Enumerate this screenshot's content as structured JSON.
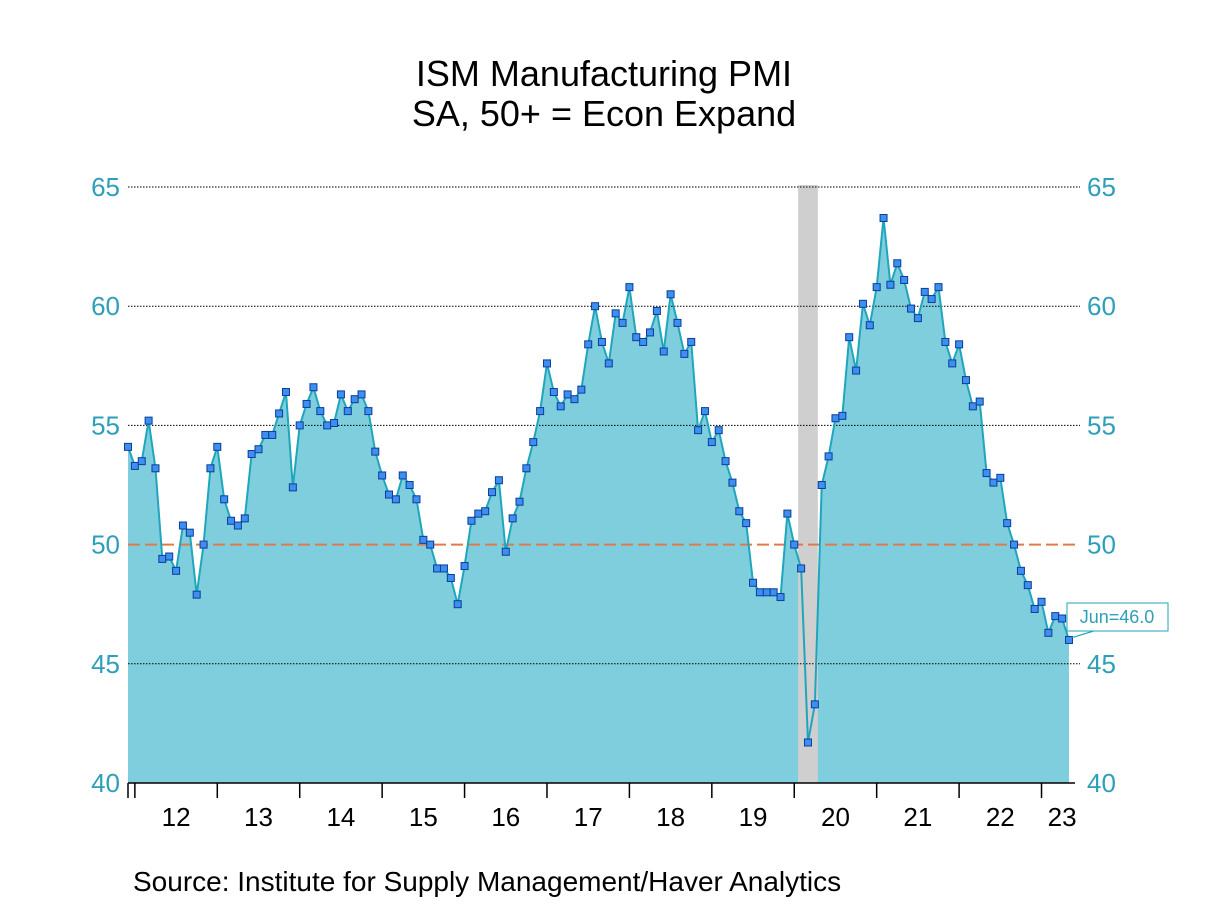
{
  "chart_data": {
    "type": "area",
    "title": "ISM Manufacturing PMI",
    "subtitle": "SA, 50+ = Econ Expand",
    "source": "Source:  Institute for Supply Management/Haver Analytics",
    "ylim": [
      40,
      65
    ],
    "yticks": [
      "40",
      "45",
      "50",
      "55",
      "60",
      "65"
    ],
    "xticks": [
      "12",
      "13",
      "14",
      "15",
      "16",
      "17",
      "18",
      "19",
      "20",
      "21",
      "22",
      "23"
    ],
    "reference_line": 50,
    "recession_shading": {
      "start": "2020-02",
      "end": "2020-04"
    },
    "annotation": "Jun=46.0",
    "series": [
      {
        "name": "ISM Manufacturing PMI",
        "start": "2011-12",
        "values": [
          54.1,
          53.3,
          53.5,
          55.2,
          53.2,
          49.4,
          49.5,
          48.9,
          50.8,
          50.5,
          47.9,
          50.0,
          53.2,
          54.1,
          51.9,
          51.0,
          50.8,
          51.1,
          53.8,
          54.0,
          54.6,
          54.6,
          55.5,
          56.4,
          52.4,
          55.0,
          55.9,
          56.6,
          55.6,
          55.0,
          55.1,
          56.3,
          55.6,
          56.1,
          56.3,
          55.6,
          53.9,
          52.9,
          52.1,
          51.9,
          52.9,
          52.5,
          51.9,
          50.2,
          50.0,
          49.0,
          49.0,
          48.6,
          47.5,
          49.1,
          51.0,
          51.3,
          51.4,
          52.2,
          52.7,
          49.7,
          51.1,
          51.8,
          53.2,
          54.3,
          55.6,
          57.6,
          56.4,
          55.8,
          56.3,
          56.1,
          56.5,
          58.4,
          60.0,
          58.5,
          57.6,
          59.7,
          59.3,
          60.8,
          58.7,
          58.5,
          58.9,
          59.8,
          58.1,
          60.5,
          59.3,
          58.0,
          58.5,
          54.8,
          55.6,
          54.3,
          54.8,
          53.5,
          52.6,
          51.4,
          50.9,
          48.4,
          48.0,
          48.0,
          48.0,
          47.8,
          51.3,
          50.0,
          49.0,
          41.7,
          43.3,
          52.5,
          53.7,
          55.3,
          55.4,
          58.7,
          57.3,
          60.1,
          59.2,
          60.8,
          63.7,
          60.9,
          61.8,
          61.1,
          59.9,
          59.5,
          60.6,
          60.3,
          60.8,
          58.5,
          57.6,
          58.4,
          56.9,
          55.8,
          56.0,
          53.0,
          52.6,
          52.8,
          50.9,
          50.0,
          48.9,
          48.3,
          47.3,
          47.6,
          46.3,
          47.0,
          46.9,
          46.0
        ]
      }
    ]
  },
  "colors": {
    "fill": "#7fcedd",
    "line": "#1fa6bd",
    "marker_fill": "#3d8ff0",
    "marker_stroke": "#0c3d99",
    "axis_text": "#2e9fb8",
    "reference": "#e07a4a",
    "shading": "#cfcfcf"
  }
}
